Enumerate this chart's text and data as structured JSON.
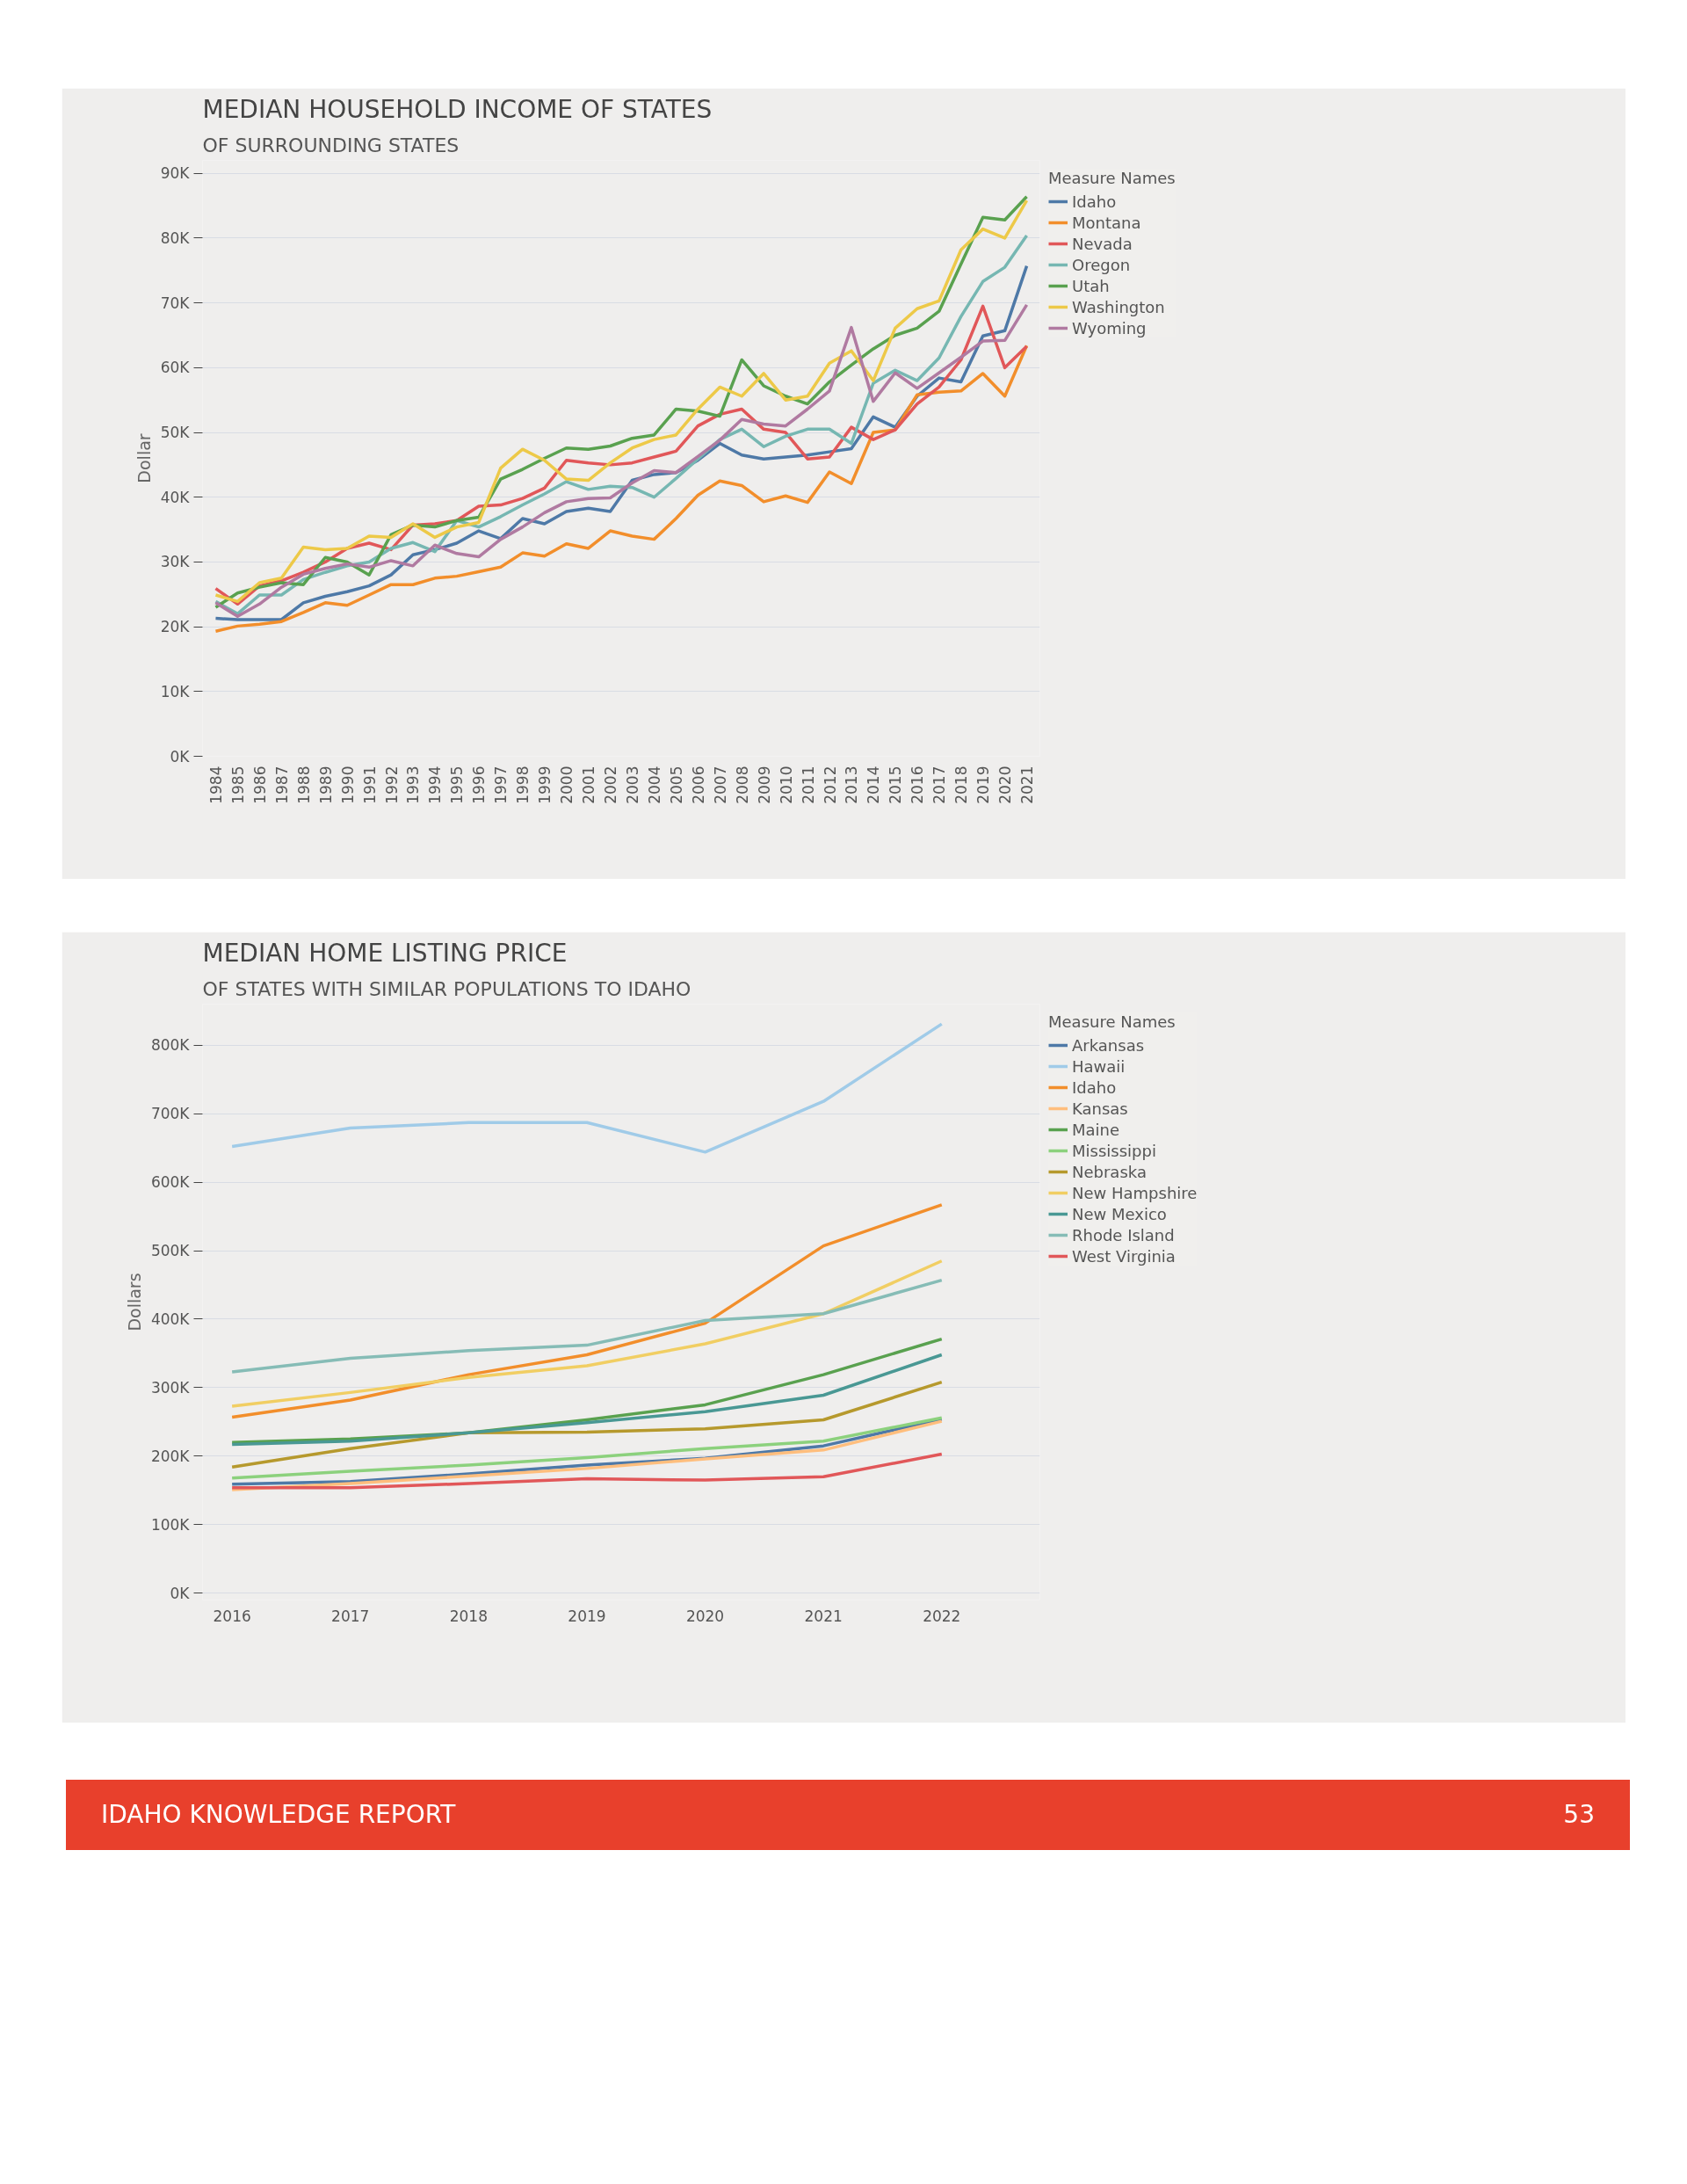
{
  "chart_data": [
    {
      "type": "line",
      "title": "MEDIAN HOUSEHOLD INCOME OF STATES",
      "subtitle": "OF SURROUNDING STATES",
      "ylabel": "Dollar",
      "legend_title": "Measure Names",
      "legend": "right",
      "grid": "y",
      "categories": [
        "1984",
        "1985",
        "1986",
        "1987",
        "1988",
        "1989",
        "1990",
        "1991",
        "1992",
        "1993",
        "1994",
        "1995",
        "1996",
        "1997",
        "1998",
        "1999",
        "2000",
        "2001",
        "2002",
        "2003",
        "2004",
        "2005",
        "2006",
        "2007",
        "2008",
        "2009",
        "2010",
        "2011",
        "2012",
        "2013",
        "2014",
        "2015",
        "2016",
        "2017",
        "2018",
        "2019",
        "2020",
        "2021"
      ],
      "ylim": [
        0,
        92000
      ],
      "yticks": [
        {
          "value": 0,
          "label": "0K"
        },
        {
          "value": 10000,
          "label": "10K"
        },
        {
          "value": 20000,
          "label": "20K"
        },
        {
          "value": 30000,
          "label": "30K"
        },
        {
          "value": 40000,
          "label": "40K"
        },
        {
          "value": 50000,
          "label": "50K"
        },
        {
          "value": 60000,
          "label": "60K"
        },
        {
          "value": 70000,
          "label": "70K"
        },
        {
          "value": 80000,
          "label": "80K"
        },
        {
          "value": 90000,
          "label": "90K"
        }
      ],
      "series": [
        {
          "name": "Idaho",
          "color": "#4e79a7",
          "values": [
            21300,
            21100,
            21100,
            21100,
            23700,
            24700,
            25400,
            26300,
            28000,
            31100,
            31900,
            32900,
            34800,
            33600,
            36700,
            35900,
            37800,
            38300,
            37800,
            42600,
            43500,
            43800,
            45700,
            48300,
            46500,
            45900,
            46200,
            46500,
            47000,
            47500,
            52400,
            50800,
            55600,
            58400,
            57800,
            64900,
            65700,
            75700
          ]
        },
        {
          "name": "Montana",
          "color": "#f28e2b",
          "values": [
            19300,
            20100,
            20400,
            20800,
            22200,
            23700,
            23300,
            24900,
            26500,
            26500,
            27500,
            27800,
            28500,
            29200,
            31400,
            30900,
            32800,
            32100,
            34800,
            34000,
            33500,
            36700,
            40300,
            42500,
            41800,
            39300,
            40200,
            39200,
            43900,
            42100,
            50000,
            50400,
            55800,
            56200,
            56400,
            59100,
            55600,
            63400
          ]
        },
        {
          "name": "Nevada",
          "color": "#e15759",
          "values": [
            25900,
            23500,
            26300,
            27100,
            28400,
            30000,
            32100,
            32900,
            31900,
            35700,
            35900,
            36400,
            38600,
            38800,
            39800,
            41400,
            45700,
            45300,
            45000,
            45300,
            46200,
            47100,
            51000,
            52800,
            53600,
            50500,
            50000,
            45900,
            46200,
            50800,
            48900,
            50400,
            54400,
            57000,
            61200,
            69500,
            60000,
            63300
          ]
        },
        {
          "name": "Oregon",
          "color": "#76b7b2",
          "values": [
            23900,
            22000,
            24900,
            24900,
            27300,
            28400,
            29400,
            30000,
            32100,
            33000,
            31600,
            36400,
            35400,
            37000,
            38800,
            40500,
            42400,
            41200,
            41700,
            41500,
            40000,
            42900,
            45900,
            48900,
            50500,
            47800,
            49400,
            50500,
            50500,
            48300,
            57600,
            59600,
            58000,
            61500,
            67900,
            73300,
            75500,
            80400
          ]
        },
        {
          "name": "Utah",
          "color": "#59a14f",
          "values": [
            23000,
            25200,
            26100,
            26800,
            26500,
            30700,
            30000,
            28000,
            34200,
            35700,
            35400,
            36400,
            36900,
            42800,
            44300,
            46000,
            47600,
            47400,
            47900,
            49100,
            49600,
            53600,
            53300,
            52500,
            61200,
            57200,
            55600,
            54400,
            57800,
            60400,
            62900,
            65000,
            66100,
            68700,
            76000,
            83200,
            82800,
            86400
          ]
        },
        {
          "name": "Washington",
          "color": "#edc948",
          "values": [
            24900,
            23900,
            26800,
            27500,
            32300,
            31900,
            32100,
            34000,
            33800,
            35900,
            33800,
            35400,
            36100,
            44500,
            47400,
            45700,
            42800,
            42600,
            45300,
            47600,
            48900,
            49600,
            53600,
            57000,
            55600,
            59100,
            55000,
            55600,
            60700,
            62600,
            58000,
            66100,
            69100,
            70300,
            78200,
            81400,
            80000,
            85800
          ]
        },
        {
          "name": "Wyoming",
          "color": "#b07aa1",
          "values": [
            23700,
            21600,
            23500,
            26100,
            28100,
            29000,
            29700,
            29200,
            30200,
            29400,
            32600,
            31300,
            30800,
            33500,
            35400,
            37600,
            39300,
            39800,
            39900,
            42200,
            44100,
            43800,
            46300,
            48800,
            52000,
            51300,
            51000,
            53600,
            56400,
            66200,
            54800,
            59200,
            56800,
            59200,
            61600,
            64100,
            64200,
            69700
          ]
        }
      ]
    },
    {
      "type": "line",
      "title": "MEDIAN HOME LISTING PRICE",
      "subtitle": "OF STATES WITH SIMILAR POPULATIONS TO IDAHO",
      "ylabel": "Dollars",
      "legend_title": "Measure Names",
      "legend": "right",
      "grid": "y",
      "x": [
        2016,
        2017,
        2018,
        2019,
        2020,
        2021,
        2022
      ],
      "xlim": [
        2015.75,
        2022.83
      ],
      "xticks": [
        2016,
        2017,
        2018,
        2019,
        2020,
        2021,
        2022
      ],
      "ylim": [
        -10000,
        860000
      ],
      "yticks": [
        {
          "value": 0,
          "label": "0K"
        },
        {
          "value": 100000,
          "label": "100K"
        },
        {
          "value": 200000,
          "label": "200K"
        },
        {
          "value": 300000,
          "label": "300K"
        },
        {
          "value": 400000,
          "label": "400K"
        },
        {
          "value": 500000,
          "label": "500K"
        },
        {
          "value": 600000,
          "label": "600K"
        },
        {
          "value": 700000,
          "label": "700K"
        },
        {
          "value": 800000,
          "label": "800K"
        }
      ],
      "annotations": [
        "IDAHO KNOWLEDGE REPORT",
        "53"
      ],
      "series": [
        {
          "name": "Arkansas",
          "color": "#4e79a7",
          "values": [
            159000,
            163000,
            174000,
            187000,
            197000,
            215000,
            254000
          ]
        },
        {
          "name": "Hawaii",
          "color": "#a0cbe8",
          "values": [
            652000,
            679000,
            687000,
            687000,
            644000,
            718000,
            831000
          ]
        },
        {
          "name": "Idaho",
          "color": "#f28e2b",
          "values": [
            257000,
            282000,
            319000,
            348000,
            394000,
            507000,
            567000
          ]
        },
        {
          "name": "Kansas",
          "color": "#ffbe7d",
          "values": [
            151000,
            160000,
            171000,
            182000,
            196000,
            209000,
            251000
          ]
        },
        {
          "name": "Maine",
          "color": "#59a14f",
          "values": [
            220000,
            225000,
            234000,
            253000,
            275000,
            319000,
            371000
          ]
        },
        {
          "name": "Mississippi",
          "color": "#8cd17d",
          "values": [
            168000,
            178000,
            187000,
            198000,
            211000,
            222000,
            256000
          ]
        },
        {
          "name": "Nebraska",
          "color": "#b6992d",
          "values": [
            184000,
            211000,
            234000,
            235000,
            240000,
            253000,
            308000
          ]
        },
        {
          "name": "New Hampshire",
          "color": "#f1ce63",
          "values": [
            273000,
            293000,
            315000,
            332000,
            364000,
            408000,
            485000
          ]
        },
        {
          "name": "New Mexico",
          "color": "#499894",
          "values": [
            217000,
            222000,
            234000,
            249000,
            265000,
            289000,
            348000
          ]
        },
        {
          "name": "Rhode Island",
          "color": "#86bcb6",
          "values": [
            323000,
            343000,
            354000,
            362000,
            398000,
            408000,
            457000
          ]
        },
        {
          "name": "West Virginia",
          "color": "#e15759",
          "values": [
            154000,
            154000,
            160000,
            167000,
            165000,
            170000,
            203000
          ]
        }
      ]
    }
  ]
}
